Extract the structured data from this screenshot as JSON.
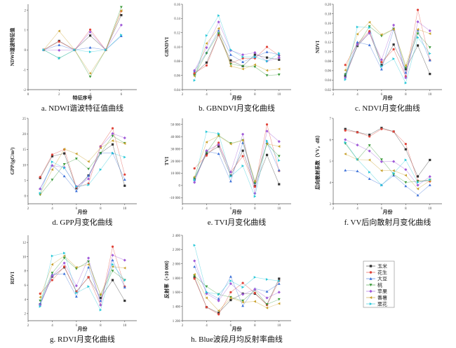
{
  "series_names": [
    "玉米",
    "花生",
    "大豆",
    "桃",
    "苹果",
    "番薯",
    "栗花"
  ],
  "series_colors": [
    "#333333",
    "#e0443a",
    "#3a6fd8",
    "#3a9a3a",
    "#a05ad8",
    "#c8a02a",
    "#28c8d8"
  ],
  "series_markers": [
    "square",
    "circle",
    "triangle-up",
    "triangle-down",
    "diamond",
    "triangle-left",
    "triangle-right"
  ],
  "chart_data": [
    {
      "type": "line",
      "caption": "a. NDWI谐波特征值曲线",
      "xlabel": "特征序号",
      "ylabel": "NDWI谐波特征值",
      "x": [
        1,
        2,
        3,
        4,
        5,
        6
      ],
      "xlim": [
        0,
        7
      ],
      "ylim": [
        -2,
        2.3
      ],
      "xticks": [
        0,
        2,
        4,
        6
      ],
      "yticks": [
        -2,
        -1,
        0,
        1,
        2
      ],
      "yticklabels": [
        "-2",
        "-1",
        "0",
        "1",
        "2"
      ],
      "series": [
        {
          "name": "玉米",
          "values": [
            0,
            0.45,
            0,
            0.72,
            0,
            1.75
          ]
        },
        {
          "name": "花生",
          "values": [
            0,
            0.42,
            0,
            1.02,
            0,
            1.95
          ]
        },
        {
          "name": "大豆",
          "values": [
            0,
            0.25,
            0,
            0.12,
            0,
            0.7
          ]
        },
        {
          "name": "桃",
          "values": [
            0,
            -0.42,
            0,
            -1.35,
            0,
            2.15
          ]
        },
        {
          "name": "苹果",
          "values": [
            0,
            -0.02,
            0,
            0.9,
            0,
            1.25
          ]
        },
        {
          "name": "番薯",
          "values": [
            0,
            0.95,
            0,
            -1.18,
            0,
            1.98
          ]
        },
        {
          "name": "栗花",
          "values": [
            0,
            -0.42,
            0,
            -0.1,
            0,
            0.75
          ]
        }
      ]
    },
    {
      "type": "line",
      "caption": "b. GBNDVI月变化曲线",
      "xlabel": "月份",
      "ylabel": "GBNDVI",
      "x": [
        3,
        4,
        5,
        6,
        7,
        8,
        9,
        10
      ],
      "xlim": [
        2,
        11
      ],
      "ylim": [
        0.04,
        0.16
      ],
      "xticks": [
        2,
        4,
        6,
        8,
        10
      ],
      "yticks": [
        0.04,
        0.06,
        0.08,
        0.1,
        0.12,
        0.14,
        0.16
      ],
      "yticklabels": [
        "0.04",
        "0.06",
        "0.08",
        "0.10",
        "0.12",
        "0.14",
        "0.16"
      ],
      "series": [
        {
          "name": "玉米",
          "values": [
            0.062,
            0.078,
            0.117,
            0.081,
            0.073,
            0.089,
            0.085,
            0.082
          ]
        },
        {
          "name": "花生",
          "values": [
            0.063,
            0.074,
            0.117,
            0.077,
            0.084,
            0.084,
            0.1,
            0.088
          ]
        },
        {
          "name": "大豆",
          "values": [
            0.066,
            0.092,
            0.123,
            0.089,
            0.079,
            0.086,
            0.093,
            0.089
          ]
        },
        {
          "name": "桃",
          "values": [
            0.06,
            0.091,
            0.119,
            0.076,
            0.073,
            0.072,
            0.06,
            0.061
          ]
        },
        {
          "name": "苹果",
          "values": [
            0.067,
            0.099,
            0.135,
            0.095,
            0.089,
            0.092,
            0.08,
            0.085
          ]
        },
        {
          "name": "番薯",
          "values": [
            0.059,
            0.105,
            0.126,
            0.073,
            0.069,
            0.075,
            0.067,
            0.069
          ]
        },
        {
          "name": "栗花",
          "values": [
            0.053,
            0.116,
            0.144,
            0.096,
            0.086,
            0.086,
            0.08,
            0.091
          ]
        }
      ]
    },
    {
      "type": "line",
      "caption": "c. NDVI月变化曲线",
      "xlabel": "月份",
      "ylabel": "NDVI",
      "x": [
        3,
        4,
        5,
        6,
        7,
        8,
        9,
        10
      ],
      "xlim": [
        2,
        11
      ],
      "ylim": [
        0.02,
        0.2
      ],
      "xticks": [
        2,
        4,
        6,
        8,
        10
      ],
      "yticks": [
        0.02,
        0.04,
        0.06,
        0.08,
        0.1,
        0.12,
        0.14,
        0.16,
        0.18,
        0.2
      ],
      "yticklabels": [
        "0.02",
        "0.04",
        "0.06",
        "0.08",
        "0.10",
        "0.12",
        "0.14",
        "0.16",
        "0.18",
        "0.20"
      ],
      "series": [
        {
          "name": "玉米",
          "values": [
            0.049,
            0.112,
            0.14,
            0.072,
            0.115,
            0.063,
            0.113,
            0.053
          ]
        },
        {
          "name": "花生",
          "values": [
            0.072,
            0.117,
            0.143,
            0.078,
            0.105,
            0.048,
            0.188,
            0.082
          ]
        },
        {
          "name": "大豆",
          "values": [
            0.053,
            0.12,
            0.114,
            0.063,
            0.147,
            0.056,
            0.145,
            0.082
          ]
        },
        {
          "name": "桃",
          "values": [
            0.052,
            0.113,
            0.153,
            0.133,
            0.148,
            0.066,
            0.138,
            0.109
          ]
        },
        {
          "name": "苹果",
          "values": [
            0.045,
            0.115,
            0.139,
            0.083,
            0.156,
            0.045,
            0.163,
            0.144
          ]
        },
        {
          "name": "番薯",
          "values": [
            0.061,
            0.137,
            0.162,
            0.136,
            0.147,
            0.071,
            0.147,
            0.138
          ]
        },
        {
          "name": "栗花",
          "values": [
            0.041,
            0.152,
            0.151,
            0.069,
            0.085,
            0.034,
            0.13,
            0.096
          ]
        }
      ]
    },
    {
      "type": "line",
      "caption": "d. GPP月变化曲线",
      "xlabel": "月份",
      "ylabel": "GPP/(gC/m²)",
      "x": [
        3,
        4,
        5,
        6,
        7,
        8,
        9,
        10
      ],
      "xlim": [
        2,
        11
      ],
      "ylim": [
        -2.5,
        25
      ],
      "xticks": [
        2,
        4,
        6,
        8,
        10
      ],
      "yticks": [
        0,
        5,
        10,
        15,
        20,
        25
      ],
      "yticklabels": [
        "0",
        "5",
        "10",
        "15",
        "20",
        "25"
      ],
      "series": [
        {
          "name": "玉米",
          "values": [
            5.8,
            12.8,
            13.7,
            2.5,
            6.6,
            13.8,
            16.6,
            3.3
          ]
        },
        {
          "name": "花生",
          "values": [
            6.1,
            13.3,
            15.0,
            2.8,
            4.0,
            16.0,
            21.8,
            6.9
          ]
        },
        {
          "name": "大豆",
          "values": [
            2.4,
            9.9,
            6.4,
            1.6,
            6.5,
            13.8,
            13.8,
            5.3
          ]
        },
        {
          "name": "桃",
          "values": [
            0.4,
            5.2,
            10.2,
            12.0,
            8.7,
            13.8,
            19.3,
            17.0
          ]
        },
        {
          "name": "苹果",
          "values": [
            2.3,
            9.8,
            9.2,
            3.1,
            5.5,
            15.8,
            20.1,
            18.7
          ]
        },
        {
          "name": "番薯",
          "values": [
            0.7,
            8.5,
            15.1,
            13.6,
            11.1,
            15.5,
            17.8,
            16.9
          ]
        },
        {
          "name": "栗花",
          "values": [
            0.9,
            11.0,
            9.0,
            3.0,
            3.6,
            8.5,
            13.8,
            12.5
          ]
        }
      ]
    },
    {
      "type": "line",
      "caption": "e. TVI月变化曲线",
      "xlabel": "月份",
      "ylabel": "TVI",
      "x": [
        3,
        4,
        5,
        6,
        7,
        8,
        9,
        10
      ],
      "xlim": [
        2,
        11
      ],
      "ylim": [
        -15000,
        55000
      ],
      "xticks": [
        2,
        4,
        6,
        8,
        10
      ],
      "yticks": [
        -10000,
        0,
        10000,
        20000,
        30000,
        40000,
        50000
      ],
      "yticklabels": [
        "-10 000",
        "0",
        "10 000",
        "20 000",
        "30 000",
        "40 000",
        "50 000"
      ],
      "series": [
        {
          "name": "玉米",
          "values": [
            5000,
            26000,
            32000,
            8000,
            28500,
            -500,
            25000,
            1000
          ]
        },
        {
          "name": "花生",
          "values": [
            14000,
            24500,
            35000,
            11000,
            24000,
            -1000,
            50000,
            12000
          ]
        },
        {
          "name": "大豆",
          "values": [
            4500,
            28000,
            26000,
            3500,
            35000,
            2000,
            35000,
            12500
          ]
        },
        {
          "name": "桃",
          "values": [
            6000,
            27000,
            41000,
            34500,
            37000,
            2000,
            34000,
            24000
          ]
        },
        {
          "name": "苹果",
          "values": [
            2500,
            28500,
            33500,
            11000,
            42000,
            -6500,
            44500,
            36000
          ]
        },
        {
          "name": "番薯",
          "values": [
            7000,
            35500,
            40500,
            34000,
            37000,
            3500,
            34000,
            32000
          ]
        },
        {
          "name": "栗花",
          "values": [
            4500,
            44000,
            42500,
            7500,
            16000,
            -9000,
            36500,
            20500
          ]
        }
      ]
    },
    {
      "type": "line",
      "caption": "f. VV后向散射月变化曲线",
      "xlabel": "月份",
      "ylabel": "后向散射系数（VV，dB）",
      "x": [
        3,
        4,
        5,
        6,
        7,
        8,
        9,
        10
      ],
      "xlim": [
        2,
        11
      ],
      "ylim": [
        3,
        7
      ],
      "xticks": [
        2,
        4,
        6,
        8,
        10
      ],
      "yticks": [
        3,
        4,
        5,
        6,
        7
      ],
      "yticklabels": [
        "3",
        "4",
        "5",
        "6",
        "7"
      ],
      "series": [
        {
          "name": "玉米",
          "values": [
            6.5,
            6.35,
            6.23,
            6.55,
            6.38,
            5.55,
            4.28,
            5.05
          ]
        },
        {
          "name": "花生",
          "values": [
            6.43,
            6.35,
            6.15,
            6.5,
            6.38,
            5.8,
            4.08,
            4.05
          ]
        },
        {
          "name": "大豆",
          "values": [
            4.57,
            4.53,
            4.17,
            3.88,
            4.33,
            3.83,
            3.4,
            3.88
          ]
        },
        {
          "name": "桃",
          "values": [
            5.82,
            5.07,
            5.73,
            5.07,
            4.38,
            4.0,
            4.05,
            4.12
          ]
        },
        {
          "name": "苹果",
          "values": [
            6.0,
            5.75,
            5.47,
            4.97,
            4.98,
            4.6,
            3.87,
            4.27
          ]
        },
        {
          "name": "番薯",
          "values": [
            5.33,
            5.07,
            5.05,
            4.55,
            4.55,
            4.33,
            3.7,
            4.08
          ]
        },
        {
          "name": "栗花",
          "values": [
            5.87,
            5.08,
            4.48,
            3.87,
            4.43,
            5.05,
            4.0,
            4.12
          ]
        }
      ]
    },
    {
      "type": "line",
      "caption": "g. RDVI月变化曲线",
      "xlabel": "月份",
      "ylabel": "RDVI",
      "x": [
        3,
        4,
        5,
        6,
        7,
        8,
        9,
        10
      ],
      "xlim": [
        2,
        11
      ],
      "ylim": [
        1,
        13
      ],
      "xticks": [
        2,
        4,
        6,
        8,
        10
      ],
      "yticks": [
        2,
        4,
        6,
        8,
        10,
        12
      ],
      "yticklabels": [
        "2",
        "4",
        "6",
        "8",
        "10",
        "12"
      ],
      "series": [
        {
          "name": "玉米",
          "values": [
            3.3,
            7.2,
            8.5,
            5.1,
            7.1,
            4.2,
            6.7,
            3.8
          ]
        },
        {
          "name": "花生",
          "values": [
            4.8,
            6.7,
            8.6,
            5.1,
            7.1,
            3.2,
            11.4,
            5.8
          ]
        },
        {
          "name": "大豆",
          "values": [
            3.4,
            7.5,
            7.6,
            4.4,
            8.5,
            3.8,
            9.5,
            5.7
          ]
        },
        {
          "name": "桃",
          "values": [
            3.8,
            7.7,
            9.8,
            8.3,
            9.3,
            4.6,
            8.0,
            6.7
          ]
        },
        {
          "name": "苹果",
          "values": [
            3.2,
            7.3,
            9.1,
            5.9,
            9.8,
            3.2,
            10.2,
            9.5
          ]
        },
        {
          "name": "番薯",
          "values": [
            4.3,
            8.9,
            10.1,
            8.5,
            8.9,
            4.7,
            8.6,
            8.4
          ]
        },
        {
          "name": "栗花",
          "values": [
            3.0,
            10.1,
            10.5,
            4.9,
            5.8,
            2.5,
            8.9,
            6.7
          ]
        }
      ]
    },
    {
      "type": "line",
      "caption": "h. Blue波段月均反射率曲线",
      "xlabel": "月份",
      "ylabel": "反射率（×10 000）",
      "x": [
        3,
        4,
        5,
        6,
        7,
        8,
        9,
        10
      ],
      "xlim": [
        2,
        11
      ],
      "ylim": [
        1200,
        2400
      ],
      "xticks": [
        2,
        4,
        6,
        8,
        10
      ],
      "yticks": [
        1200,
        1400,
        1600,
        1800,
        2000,
        2200,
        2400
      ],
      "yticklabels": [
        "1 200",
        "1 400",
        "1 600",
        "1 800",
        "2 000",
        "2 200",
        "2 400"
      ],
      "series": [
        {
          "name": "玉米",
          "values": [
            1810,
            1390,
            1310,
            1490,
            1580,
            1580,
            1430,
            1790
          ]
        },
        {
          "name": "花生",
          "values": [
            1790,
            1390,
            1290,
            1600,
            1730,
            1590,
            1420,
            1760
          ]
        },
        {
          "name": "大豆",
          "values": [
            1960,
            1600,
            1510,
            1820,
            1410,
            1650,
            1610,
            1720
          ]
        },
        {
          "name": "桃",
          "values": [
            1830,
            1680,
            1570,
            1530,
            1480,
            1630,
            1430,
            1500
          ]
        },
        {
          "name": "苹果",
          "values": [
            2040,
            1580,
            1480,
            1720,
            1570,
            1640,
            1520,
            1600
          ]
        },
        {
          "name": "番薯",
          "values": [
            1850,
            1520,
            1340,
            1520,
            1460,
            1470,
            1380,
            1440
          ]
        },
        {
          "name": "栗花",
          "values": [
            2260,
            1600,
            1570,
            1760,
            1670,
            1810,
            1780,
            1760
          ]
        }
      ]
    }
  ]
}
